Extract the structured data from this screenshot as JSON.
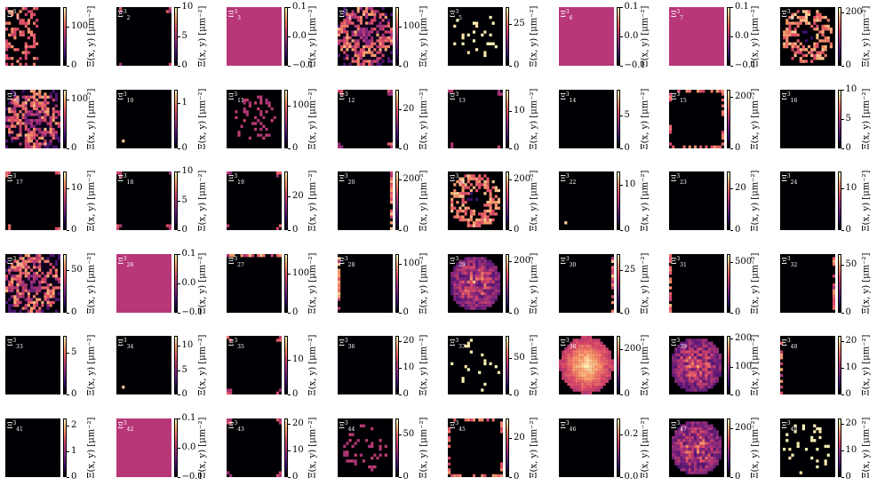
{
  "colorbar_label": "Ξ(x, y) [μm⁻²]",
  "panel_symbol": "Ξ",
  "panel_superscript": "3",
  "colors": {
    "background": "#000004",
    "constant_field": "#b73779",
    "colormap": [
      "#000004",
      "#3b0f70",
      "#8c2981",
      "#de4968",
      "#fe9f6d",
      "#fcfdbf"
    ]
  },
  "chart_data": [
    {
      "type": "heatmap",
      "index": "1",
      "ticks": [
        "0",
        "100"
      ],
      "vrange": [
        0,
        150
      ],
      "pattern": "sparse-left"
    },
    {
      "type": "heatmap",
      "index": "2",
      "ticks": [
        "0",
        "5",
        "10"
      ],
      "vrange": [
        0,
        10
      ],
      "pattern": "corners"
    },
    {
      "type": "heatmap",
      "index": "3",
      "ticks": [
        "−0.1",
        "0.0",
        "0.1"
      ],
      "vrange": [
        -0.1,
        0.1
      ],
      "pattern": "constant"
    },
    {
      "type": "heatmap",
      "index": "4",
      "ticks": [
        "0",
        "100"
      ],
      "vrange": [
        0,
        150
      ],
      "pattern": "ring-dense"
    },
    {
      "type": "heatmap",
      "index": "5",
      "ticks": [
        "0",
        "25"
      ],
      "vrange": [
        0,
        35
      ],
      "pattern": "sparse-dots"
    },
    {
      "type": "heatmap",
      "index": "6",
      "ticks": [
        "−0.1",
        "0.0",
        "0.1"
      ],
      "vrange": [
        -0.1,
        0.1
      ],
      "pattern": "constant"
    },
    {
      "type": "heatmap",
      "index": "7",
      "ticks": [
        "−0.1",
        "0.0",
        "0.1"
      ],
      "vrange": [
        -0.1,
        0.1
      ],
      "pattern": "constant"
    },
    {
      "type": "heatmap",
      "index": "8",
      "ticks": [
        "0",
        "200"
      ],
      "vrange": [
        0,
        220
      ],
      "pattern": "ring"
    },
    {
      "type": "heatmap",
      "index": "9",
      "ticks": [
        "0",
        "100"
      ],
      "vrange": [
        0,
        120
      ],
      "pattern": "ring-dense"
    },
    {
      "type": "heatmap",
      "index": "10",
      "ticks": [
        "0",
        "1"
      ],
      "vrange": [
        0,
        1.3
      ],
      "pattern": "edge-dot"
    },
    {
      "type": "heatmap",
      "index": "11",
      "ticks": [
        "0",
        "100"
      ],
      "vrange": [
        0,
        140
      ],
      "pattern": "sparse-center"
    },
    {
      "type": "heatmap",
      "index": "12",
      "ticks": [
        "0",
        "20"
      ],
      "vrange": [
        0,
        30
      ],
      "pattern": "corners"
    },
    {
      "type": "heatmap",
      "index": "13",
      "ticks": [
        "0",
        "10"
      ],
      "vrange": [
        0,
        16
      ],
      "pattern": "corners"
    },
    {
      "type": "heatmap",
      "index": "14",
      "ticks": [
        "0",
        "5"
      ],
      "vrange": [
        0,
        9
      ],
      "pattern": "black"
    },
    {
      "type": "heatmap",
      "index": "15",
      "ticks": [
        "0",
        "200"
      ],
      "vrange": [
        0,
        230
      ],
      "pattern": "edges"
    },
    {
      "type": "heatmap",
      "index": "16",
      "ticks": [
        "0",
        "5",
        "10"
      ],
      "vrange": [
        0,
        10
      ],
      "pattern": "black"
    },
    {
      "type": "heatmap",
      "index": "17",
      "ticks": [
        "0",
        "10"
      ],
      "vrange": [
        0,
        14
      ],
      "pattern": "corners"
    },
    {
      "type": "heatmap",
      "index": "18",
      "ticks": [
        "0",
        "5",
        "10"
      ],
      "vrange": [
        0,
        10
      ],
      "pattern": "corners"
    },
    {
      "type": "heatmap",
      "index": "19",
      "ticks": [
        "0",
        "20"
      ],
      "vrange": [
        0,
        35
      ],
      "pattern": "corners"
    },
    {
      "type": "heatmap",
      "index": "20",
      "ticks": [
        "0",
        "200"
      ],
      "vrange": [
        0,
        230
      ],
      "pattern": "right-edge"
    },
    {
      "type": "heatmap",
      "index": "21",
      "ticks": [
        "0",
        "200"
      ],
      "vrange": [
        0,
        230
      ],
      "pattern": "ring"
    },
    {
      "type": "heatmap",
      "index": "22",
      "ticks": [
        "0",
        "10"
      ],
      "vrange": [
        0,
        13
      ],
      "pattern": "edge-dot"
    },
    {
      "type": "heatmap",
      "index": "23",
      "ticks": [
        "0",
        "20"
      ],
      "vrange": [
        0,
        28
      ],
      "pattern": "black"
    },
    {
      "type": "heatmap",
      "index": "24",
      "ticks": [
        "0",
        "10"
      ],
      "vrange": [
        0,
        14
      ],
      "pattern": "black"
    },
    {
      "type": "heatmap",
      "index": "25",
      "ticks": [
        "0",
        "50"
      ],
      "vrange": [
        0,
        70
      ],
      "pattern": "ring-dense"
    },
    {
      "type": "heatmap",
      "index": "26",
      "ticks": [
        "−0.1",
        "0.0",
        "0.1"
      ],
      "vrange": [
        -0.1,
        0.1
      ],
      "pattern": "constant"
    },
    {
      "type": "heatmap",
      "index": "27",
      "ticks": [
        "0",
        "100"
      ],
      "vrange": [
        0,
        150
      ],
      "pattern": "top-edge"
    },
    {
      "type": "heatmap",
      "index": "28",
      "ticks": [
        "0",
        "100"
      ],
      "vrange": [
        0,
        120
      ],
      "pattern": "left-edge"
    },
    {
      "type": "heatmap",
      "index": "29",
      "ticks": [
        "0",
        "200"
      ],
      "vrange": [
        0,
        230
      ],
      "pattern": "disk"
    },
    {
      "type": "heatmap",
      "index": "30",
      "ticks": [
        "0",
        "25"
      ],
      "vrange": [
        0,
        35
      ],
      "pattern": "right-edge"
    },
    {
      "type": "heatmap",
      "index": "31",
      "ticks": [
        "0",
        "500"
      ],
      "vrange": [
        0,
        580
      ],
      "pattern": "left-edge"
    },
    {
      "type": "heatmap",
      "index": "32",
      "ticks": [
        "0",
        "50"
      ],
      "vrange": [
        0,
        62
      ],
      "pattern": "right-edge"
    },
    {
      "type": "heatmap",
      "index": "33",
      "ticks": [
        "0",
        "5"
      ],
      "vrange": [
        0,
        7
      ],
      "pattern": "black"
    },
    {
      "type": "heatmap",
      "index": "34",
      "ticks": [
        "0",
        "5",
        "10"
      ],
      "vrange": [
        0,
        12
      ],
      "pattern": "edge-dot"
    },
    {
      "type": "heatmap",
      "index": "35",
      "ticks": [
        "0",
        "10"
      ],
      "vrange": [
        0,
        17
      ],
      "pattern": "corners"
    },
    {
      "type": "heatmap",
      "index": "36",
      "ticks": [
        "0",
        "10",
        "20"
      ],
      "vrange": [
        0,
        22
      ],
      "pattern": "black"
    },
    {
      "type": "heatmap",
      "index": "37",
      "ticks": [
        "0",
        "50"
      ],
      "vrange": [
        0,
        80
      ],
      "pattern": "sparse-dots"
    },
    {
      "type": "heatmap",
      "index": "38",
      "ticks": [
        "0",
        "200"
      ],
      "vrange": [
        0,
        260
      ],
      "pattern": "disk-bright"
    },
    {
      "type": "heatmap",
      "index": "39",
      "ticks": [
        "0",
        "100",
        "200"
      ],
      "vrange": [
        0,
        210
      ],
      "pattern": "disk"
    },
    {
      "type": "heatmap",
      "index": "40",
      "ticks": [
        "0",
        "10",
        "20"
      ],
      "vrange": [
        0,
        22
      ],
      "pattern": "left-edge"
    },
    {
      "type": "heatmap",
      "index": "41",
      "ticks": [
        "0",
        "1",
        "2"
      ],
      "vrange": [
        0,
        2.3
      ],
      "pattern": "black"
    },
    {
      "type": "heatmap",
      "index": "42",
      "ticks": [
        "−0.1",
        "0.0",
        "0.1"
      ],
      "vrange": [
        -0.1,
        0.1
      ],
      "pattern": "constant"
    },
    {
      "type": "heatmap",
      "index": "43",
      "ticks": [
        "0",
        "10",
        "20"
      ],
      "vrange": [
        0,
        22
      ],
      "pattern": "corners"
    },
    {
      "type": "heatmap",
      "index": "44",
      "ticks": [
        "0",
        "50"
      ],
      "vrange": [
        0,
        70
      ],
      "pattern": "sparse-center"
    },
    {
      "type": "heatmap",
      "index": "45",
      "ticks": [
        "0",
        "20"
      ],
      "vrange": [
        0,
        30
      ],
      "pattern": "edges"
    },
    {
      "type": "heatmap",
      "index": "46",
      "ticks": [
        "0.0",
        "0.2"
      ],
      "vrange": [
        0,
        0.28
      ],
      "pattern": "black"
    },
    {
      "type": "heatmap",
      "index": "47",
      "ticks": [
        "0",
        "200"
      ],
      "vrange": [
        0,
        240
      ],
      "pattern": "disk"
    },
    {
      "type": "heatmap",
      "index": "48",
      "ticks": [
        "0",
        "10",
        "20"
      ],
      "vrange": [
        0,
        22
      ],
      "pattern": "sparse-dots"
    }
  ]
}
